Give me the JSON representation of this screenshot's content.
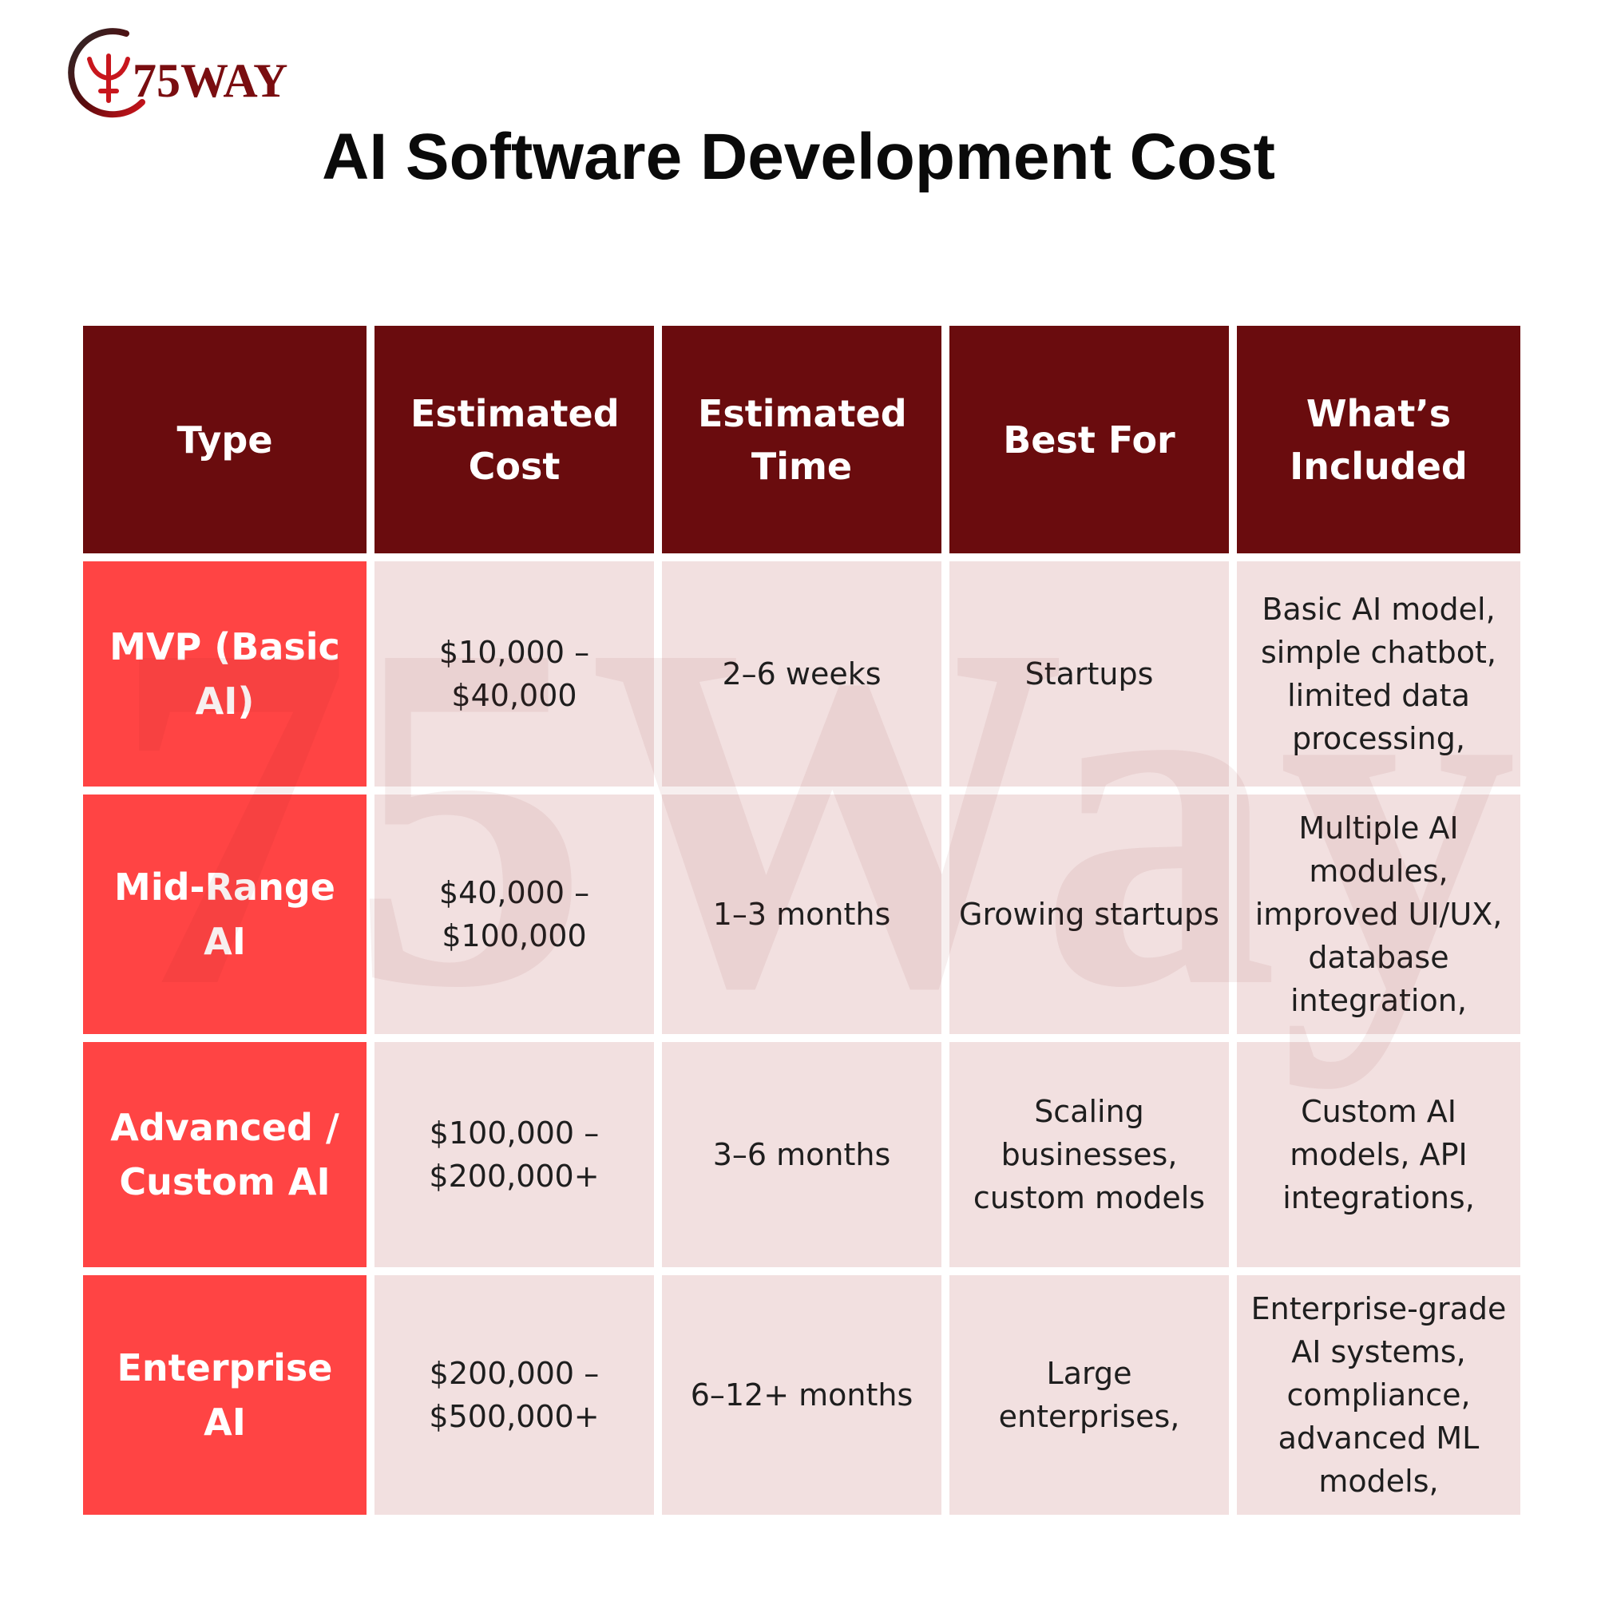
{
  "brand": {
    "logo_text": "75WAY",
    "watermark_text": "75Way",
    "colors": {
      "header_bg": "#6a0c0e",
      "type_bg": "#ff4444",
      "cell_bg": "#f2e0e0",
      "logo_red": "#c8161d"
    }
  },
  "title": "AI Software Development Cost",
  "table": {
    "headers": [
      "Type",
      "Estimated Cost",
      "Estimated Time",
      "Best For",
      "What’s Included"
    ],
    "rows": [
      {
        "type": "MVP (Basic AI)",
        "cost": "$10,000 – $40,000",
        "time": "2–6 weeks",
        "best_for": "Startups",
        "included": "Basic AI model, simple chatbot, limited data processing,"
      },
      {
        "type": "Mid-Range AI",
        "cost": "$40,000 – $100,000",
        "time": "1–3 months",
        "best_for": "Growing startups",
        "included": "Multiple AI modules, improved UI/UX, database integration,"
      },
      {
        "type": "Advanced / Custom AI",
        "cost": "$100,000 – $200,000+",
        "time": "3–6 months",
        "best_for": "Scaling businesses, custom models",
        "included": "Custom AI models, API integrations,"
      },
      {
        "type": "Enterprise AI",
        "cost": "$200,000 – $500,000+",
        "time": "6–12+ months",
        "best_for": "Large enterprises,",
        "included": "Enterprise-grade AI systems, compliance, advanced ML models,"
      }
    ]
  }
}
